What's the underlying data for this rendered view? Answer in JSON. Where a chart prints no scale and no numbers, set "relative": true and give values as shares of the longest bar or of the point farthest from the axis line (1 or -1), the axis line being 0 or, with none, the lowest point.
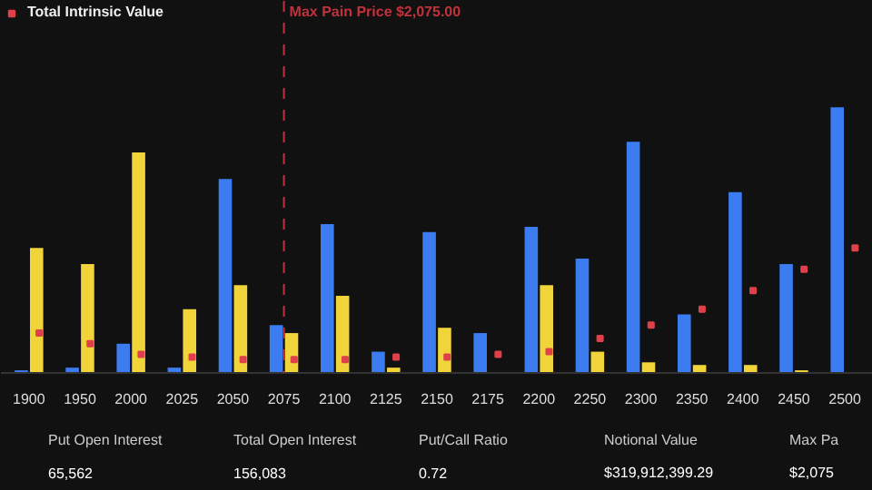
{
  "chart_data": {
    "type": "bar",
    "relative": true,
    "categories": [
      "1900",
      "1950",
      "2000",
      "2025",
      "2050",
      "2075",
      "2100",
      "2125",
      "2150",
      "2175",
      "2200",
      "2250",
      "2300",
      "2350",
      "2400",
      "2450",
      "2500"
    ],
    "series": [
      {
        "color": "#3b7cf0",
        "values": [
          0.01,
          0.02,
          0.11,
          0.02,
          0.73,
          0.18,
          0.56,
          0.08,
          0.53,
          0.15,
          0.55,
          0.43,
          0.87,
          0.22,
          0.68,
          0.41,
          1.0
        ]
      },
      {
        "color": "#f0d43a",
        "values": [
          0.47,
          0.41,
          0.83,
          0.24,
          0.33,
          0.15,
          0.29,
          0.02,
          0.17,
          null,
          0.33,
          0.08,
          0.04,
          0.03,
          0.03,
          0.01,
          null
        ]
      },
      {
        "type": "scatter",
        "name": "Total Intrinsic Value",
        "color": "#e0404a",
        "values": [
          0.15,
          0.11,
          0.07,
          0.06,
          0.05,
          0.05,
          0.05,
          0.06,
          0.06,
          0.07,
          0.08,
          0.13,
          0.18,
          0.24,
          0.31,
          0.39,
          0.47
        ]
      }
    ],
    "marker": "square",
    "legend": "top left",
    "ref_lines": [
      {
        "axis": "x",
        "value": "2075",
        "label": "Max Pain Price $2,075.00",
        "color": "#c0323c",
        "line_style": "dashed"
      }
    ],
    "annotations": [
      "Put Open Interest",
      "65,562",
      "Total Open Interest",
      "156,083",
      "Put/Call Ratio",
      "0.72",
      "Notional Value",
      "$319,912,399.29",
      "Max Pa",
      "$2,075"
    ]
  }
}
